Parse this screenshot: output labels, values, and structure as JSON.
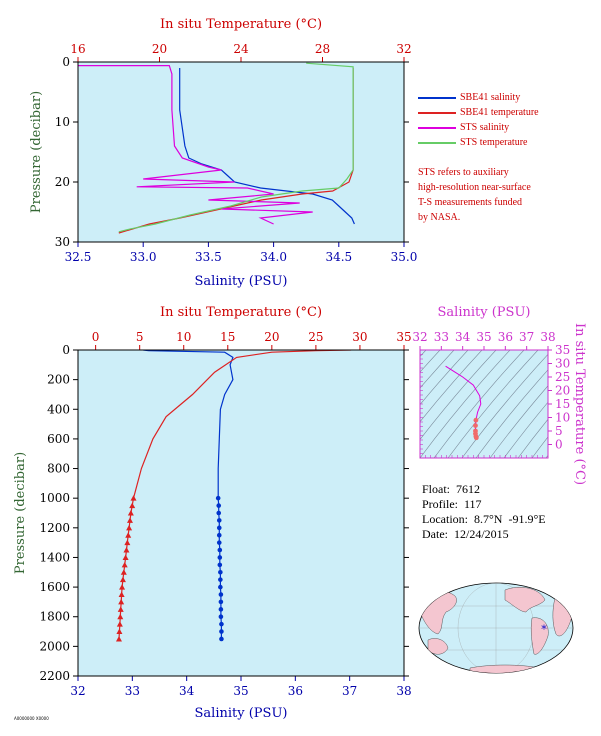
{
  "colors": {
    "background": "#cdeef8",
    "salinity_axis": "#0000aa",
    "temperature_axis": "#cc0000",
    "pressure_axis": "#336633",
    "sbe_salinity": "#0033cc",
    "sbe_temperature": "#dd2222",
    "sts_salinity": "#dd00dd",
    "sts_temperature": "#66cc66",
    "ts_axis": "#cc33cc"
  },
  "legend": {
    "items": [
      {
        "label": "SBE41 salinity",
        "color": "#0033cc"
      },
      {
        "label": "SBE41 temperature",
        "color": "#dd2222"
      },
      {
        "label": "STS salinity",
        "color": "#dd00dd"
      },
      {
        "label": "STS temperature",
        "color": "#66cc66"
      }
    ],
    "note_lines": [
      "STS refers to auxiliary",
      "high-resolution near-surface",
      "T-S measurements funded",
      "by NASA."
    ]
  },
  "float_info": {
    "float": "Float:  7612",
    "profile": "Profile:  117",
    "location": "Location:  8.7°N  -91.9°E",
    "date": "Date:  12/24/2015"
  },
  "footer_text": "A0000000 X0000",
  "chart_data": [
    {
      "type": "line",
      "name": "near-surface",
      "top_title": "In situ Temperature (°C)",
      "bottom_title": "Salinity (PSU)",
      "ylabel": "Pressure (decibar)",
      "xlim_salinity": [
        32.5,
        35.0
      ],
      "xlim_temperature": [
        16,
        32
      ],
      "ylim": [
        30,
        0
      ],
      "salinity_ticks": [
        "32.5",
        "33.0",
        "33.5",
        "34.0",
        "34.5",
        "35.0"
      ],
      "temperature_ticks": [
        "16",
        "20",
        "24",
        "28",
        "32"
      ],
      "pressure_ticks": [
        "0",
        "10",
        "20",
        "30"
      ],
      "series": [
        {
          "name": "SBE41 salinity",
          "axis": "salinity",
          "points": [
            [
              33.28,
              1
            ],
            [
              33.28,
              8
            ],
            [
              33.32,
              14
            ],
            [
              33.35,
              16
            ],
            [
              33.45,
              17
            ],
            [
              33.6,
              18
            ],
            [
              33.65,
              19
            ],
            [
              33.7,
              20
            ],
            [
              33.9,
              21
            ],
            [
              34.3,
              22
            ],
            [
              34.45,
              23
            ],
            [
              34.5,
              24
            ],
            [
              34.55,
              25
            ],
            [
              34.6,
              26
            ],
            [
              34.62,
              27
            ]
          ]
        },
        {
          "name": "SBE41 temperature",
          "axis": "temperature",
          "points": [
            [
              29.5,
              1
            ],
            [
              29.5,
              18
            ],
            [
              29.3,
              20
            ],
            [
              28.5,
              21.5
            ],
            [
              27.0,
              22
            ],
            [
              25.0,
              23
            ],
            [
              23.0,
              24.5
            ],
            [
              21.0,
              26
            ],
            [
              19.5,
              27
            ],
            [
              18.0,
              28.5
            ]
          ]
        },
        {
          "name": "STS salinity",
          "axis": "salinity",
          "points": [
            [
              32.5,
              0.6
            ],
            [
              33.2,
              0.6
            ],
            [
              33.22,
              2
            ],
            [
              33.22,
              8
            ],
            [
              33.24,
              14
            ],
            [
              33.3,
              16
            ],
            [
              33.5,
              17.5
            ],
            [
              33.6,
              18
            ],
            [
              33.0,
              19.5
            ],
            [
              33.7,
              20
            ],
            [
              32.95,
              20.8
            ],
            [
              33.8,
              21
            ],
            [
              34.0,
              22
            ],
            [
              33.5,
              23
            ],
            [
              34.2,
              23.5
            ],
            [
              33.6,
              24.5
            ],
            [
              34.3,
              25
            ],
            [
              33.9,
              26
            ],
            [
              34.0,
              27
            ]
          ]
        },
        {
          "name": "STS temperature",
          "axis": "temperature",
          "points": [
            [
              27.2,
              0.2
            ],
            [
              29.5,
              0.8
            ],
            [
              29.5,
              18
            ],
            [
              29.2,
              19.5
            ],
            [
              28.8,
              21
            ],
            [
              27.0,
              21.5
            ],
            [
              25.0,
              22.5
            ],
            [
              23.5,
              24
            ],
            [
              21.5,
              25.5
            ],
            [
              19.8,
              27
            ],
            [
              18.6,
              27.8
            ],
            [
              18.0,
              28.3
            ]
          ]
        }
      ]
    },
    {
      "type": "line",
      "name": "full-profile",
      "top_title": "In situ Temperature (°C)",
      "bottom_title": "Salinity (PSU)",
      "ylabel": "Pressure (decibar)",
      "xlim_salinity": [
        32,
        38
      ],
      "xlim_temperature": [
        -2,
        35
      ],
      "ylim": [
        2200,
        0
      ],
      "salinity_ticks": [
        "32",
        "33",
        "34",
        "35",
        "36",
        "37",
        "38"
      ],
      "temperature_ticks": [
        "0",
        "5",
        "10",
        "15",
        "20",
        "25",
        "30",
        "35"
      ],
      "pressure_ticks": [
        "0",
        "200",
        "400",
        "600",
        "800",
        "1000",
        "1200",
        "1400",
        "1600",
        "1800",
        "2000",
        "2200"
      ],
      "series": [
        {
          "name": "SBE41 salinity",
          "axis": "salinity",
          "points": [
            [
              33.2,
              0
            ],
            [
              33.3,
              5
            ],
            [
              34.7,
              15
            ],
            [
              34.85,
              50
            ],
            [
              34.8,
              100
            ],
            [
              34.85,
              200
            ],
            [
              34.7,
              300
            ],
            [
              34.62,
              400
            ],
            [
              34.6,
              600
            ],
            [
              34.58,
              800
            ],
            [
              34.58,
              1000
            ]
          ]
        },
        {
          "name": "SBE41 temperature",
          "axis": "temperature",
          "points": [
            [
              29.0,
              0
            ],
            [
              25.0,
              5
            ],
            [
              20.0,
              15
            ],
            [
              16.0,
              50
            ],
            [
              13.5,
              150
            ],
            [
              11.0,
              300
            ],
            [
              8.0,
              450
            ],
            [
              6.5,
              600
            ],
            [
              5.2,
              800
            ],
            [
              4.3,
              1000
            ]
          ]
        },
        {
          "name": "SBE41 salinity (discrete)",
          "axis": "salinity",
          "points": [
            [
              34.58,
              1000
            ],
            [
              34.59,
              1050
            ],
            [
              34.59,
              1100
            ],
            [
              34.6,
              1150
            ],
            [
              34.6,
              1200
            ],
            [
              34.6,
              1250
            ],
            [
              34.6,
              1300
            ],
            [
              34.61,
              1350
            ],
            [
              34.61,
              1400
            ],
            [
              34.61,
              1450
            ],
            [
              34.62,
              1500
            ],
            [
              34.62,
              1550
            ],
            [
              34.62,
              1600
            ],
            [
              34.63,
              1650
            ],
            [
              34.63,
              1700
            ],
            [
              34.63,
              1750
            ],
            [
              34.63,
              1800
            ],
            [
              34.64,
              1850
            ],
            [
              34.64,
              1900
            ],
            [
              34.64,
              1950
            ]
          ]
        },
        {
          "name": "SBE41 temperature (discrete)",
          "axis": "temperature",
          "points": [
            [
              4.3,
              1000
            ],
            [
              4.15,
              1050
            ],
            [
              4.0,
              1100
            ],
            [
              3.9,
              1150
            ],
            [
              3.8,
              1200
            ],
            [
              3.7,
              1250
            ],
            [
              3.6,
              1300
            ],
            [
              3.5,
              1350
            ],
            [
              3.4,
              1400
            ],
            [
              3.3,
              1450
            ],
            [
              3.2,
              1500
            ],
            [
              3.1,
              1550
            ],
            [
              3.0,
              1600
            ],
            [
              2.95,
              1650
            ],
            [
              2.9,
              1700
            ],
            [
              2.85,
              1750
            ],
            [
              2.8,
              1800
            ],
            [
              2.75,
              1850
            ],
            [
              2.7,
              1900
            ],
            [
              2.65,
              1950
            ]
          ]
        }
      ]
    },
    {
      "type": "scatter",
      "name": "ts-diagram",
      "top_title": "Salinity (PSU)",
      "right_title": "In situ Temperature (°C)",
      "xlim": [
        32,
        38
      ],
      "ylim": [
        -5,
        35
      ],
      "salinity_ticks": [
        "32",
        "33",
        "34",
        "35",
        "36",
        "37",
        "38"
      ],
      "temperature_ticks": [
        "0",
        "5",
        "10",
        "15",
        "20",
        "25",
        "30",
        "35"
      ],
      "points": [
        [
          33.2,
          29
        ],
        [
          33.6,
          27
        ],
        [
          34.0,
          25
        ],
        [
          34.5,
          22
        ],
        [
          34.8,
          18
        ],
        [
          34.85,
          15
        ],
        [
          34.7,
          12
        ],
        [
          34.62,
          9
        ],
        [
          34.6,
          7
        ],
        [
          34.6,
          5
        ],
        [
          34.6,
          4
        ],
        [
          34.62,
          3
        ],
        [
          34.64,
          2.5
        ]
      ]
    }
  ],
  "world_map": {
    "marker": "float location"
  }
}
